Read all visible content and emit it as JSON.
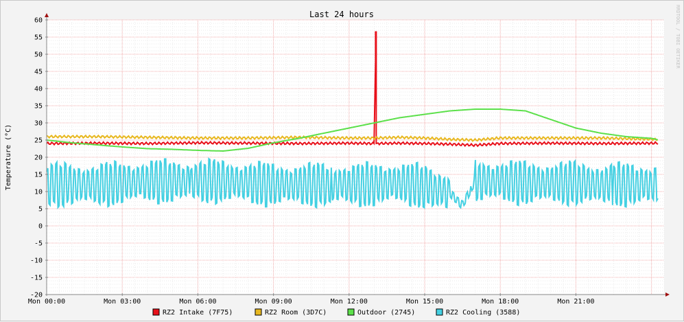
{
  "chart_data": {
    "type": "line",
    "title": "Last 24 hours",
    "ylabel": "Temperature (°C)",
    "xlabel": "",
    "watermark": "RRDTOOL / TOBI OETIKER",
    "ylim": [
      -20,
      60
    ],
    "y_ticks": [
      -20,
      -15,
      -10,
      -5,
      0,
      5,
      10,
      15,
      20,
      25,
      30,
      35,
      40,
      45,
      50,
      55,
      60
    ],
    "y_tick_labels": [
      "-20",
      "-15",
      "-10",
      "-5",
      "0",
      "5",
      "10",
      "15",
      "20",
      "25",
      "30",
      "35",
      "40",
      "45",
      "50",
      "55",
      "60"
    ],
    "xlim_hours": [
      0,
      24.5
    ],
    "x_ticks": [
      0,
      3,
      6,
      9,
      12,
      15,
      18,
      21
    ],
    "x_tick_labels": [
      "Mon 00:00",
      "Mon 03:00",
      "Mon 06:00",
      "Mon 09:00",
      "Mon 12:00",
      "Mon 15:00",
      "Mon 18:00",
      "Mon 21:00"
    ],
    "grid": true,
    "legend_position": "bottom",
    "series": [
      {
        "name": "RZ2 Intake (7F75)",
        "color": "#e8101a",
        "x": [
          0,
          2,
          4,
          6,
          8,
          10,
          12,
          13.0,
          13.05,
          13.1,
          14,
          15,
          16,
          17,
          18,
          20,
          22,
          24.3
        ],
        "y": [
          24,
          24.1,
          24,
          24.2,
          24.1,
          24,
          24.1,
          24,
          56.5,
          24,
          24.1,
          24,
          23.8,
          23.5,
          24,
          24.1,
          24,
          24.1
        ]
      },
      {
        "name": "RZ2 Room (3D7C)",
        "color": "#e8b820",
        "x": [
          0,
          2,
          4,
          6,
          8,
          10,
          12,
          13,
          14,
          15,
          16,
          17,
          18,
          20,
          22,
          24.3
        ],
        "y": [
          26,
          26,
          25.8,
          25.6,
          25.6,
          25.8,
          25.6,
          25.6,
          25.8,
          25.6,
          25.2,
          25,
          25.6,
          25.6,
          25.6,
          25.2
        ]
      },
      {
        "name": "Outdoor (2745)",
        "color": "#5ce04a",
        "x": [
          0,
          1,
          2,
          3,
          4,
          5,
          6,
          7,
          8,
          9,
          10,
          11,
          12,
          13,
          14,
          15,
          16,
          17,
          18,
          19,
          20,
          21,
          22,
          23,
          24,
          24.3
        ],
        "y": [
          25,
          24.2,
          23.6,
          23,
          22.5,
          22.3,
          22,
          21.8,
          22.6,
          24.2,
          25.5,
          27,
          28.5,
          30,
          31.5,
          32.5,
          33.5,
          34,
          34,
          33.5,
          31,
          28.5,
          27,
          26,
          25.5,
          25
        ]
      },
      {
        "name": "RZ2 Cooling (3588)",
        "color": "#44d0e2",
        "x": [
          0,
          1,
          2,
          3,
          4,
          5,
          6,
          7,
          8,
          9,
          10,
          11,
          12,
          13,
          14,
          15,
          16,
          16.5,
          17,
          18,
          19,
          20,
          21,
          22,
          23,
          24,
          24.3
        ],
        "y": [
          12,
          12,
          12,
          12.5,
          13,
          13,
          13,
          13,
          12.5,
          12,
          12,
          12,
          12,
          12,
          12.5,
          11.5,
          9.5,
          6,
          13,
          13,
          12.5,
          12.5,
          12.5,
          12,
          12,
          12,
          12
        ]
      }
    ]
  }
}
